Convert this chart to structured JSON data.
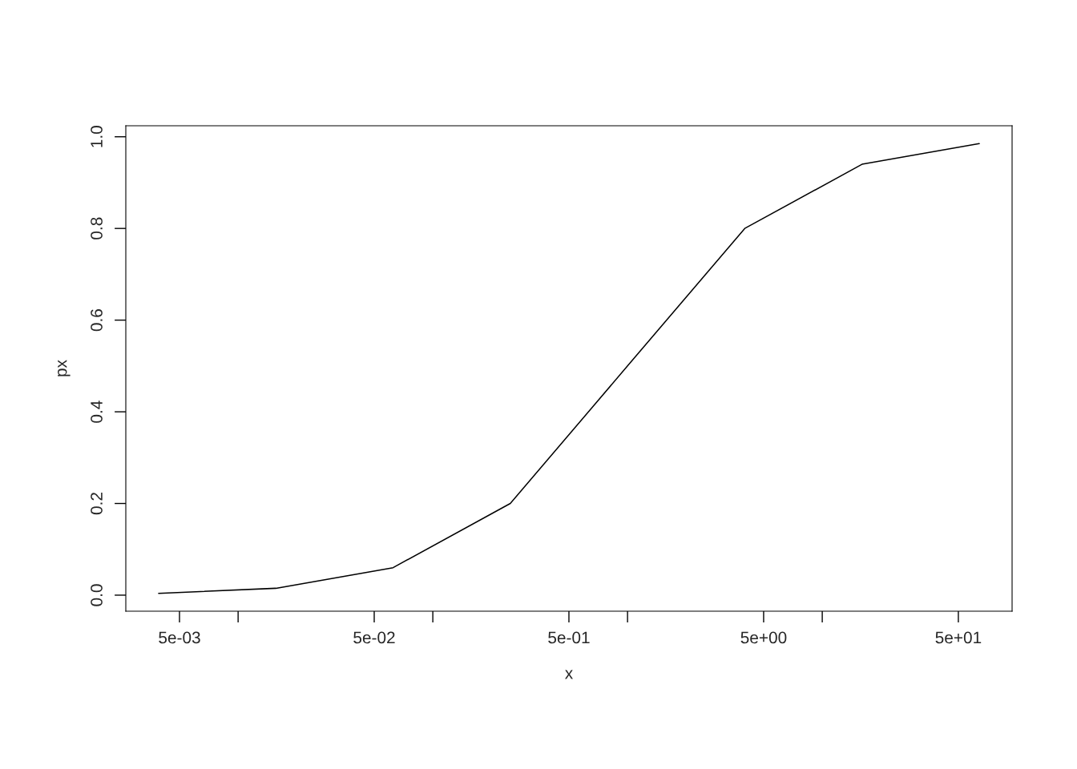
{
  "chart_data": {
    "type": "line",
    "xlabel": "x",
    "ylabel": "px",
    "log": "x",
    "x": [
      0.00390625,
      0.015625,
      0.0625,
      0.25,
      1,
      4,
      16,
      64
    ],
    "series": [
      {
        "color": "#000000",
        "values": [
          0.004,
          0.015,
          0.06,
          0.2,
          0.5,
          0.8,
          0.94,
          0.985
        ]
      }
    ],
    "xlim": [
      0.00265,
      94.4
    ],
    "ylim": [
      -0.035,
      1.024
    ],
    "xticks": [
      {
        "value": 0.005,
        "label": "5e-03"
      },
      {
        "value": 0.01,
        "label": null
      },
      {
        "value": 0.05,
        "label": "5e-02"
      },
      {
        "value": 0.1,
        "label": null
      },
      {
        "value": 0.5,
        "label": "5e-01"
      },
      {
        "value": 1,
        "label": null
      },
      {
        "value": 5,
        "label": "5e+00"
      },
      {
        "value": 10,
        "label": null
      },
      {
        "value": 50,
        "label": "5e+01"
      }
    ],
    "yticks": [
      {
        "value": 0,
        "label": "0.0"
      },
      0.2,
      0.4,
      0.6,
      0.8,
      {
        "value": 1,
        "label": "1.0"
      }
    ],
    "grid": false,
    "marker": "none",
    "line_style": "solid"
  }
}
